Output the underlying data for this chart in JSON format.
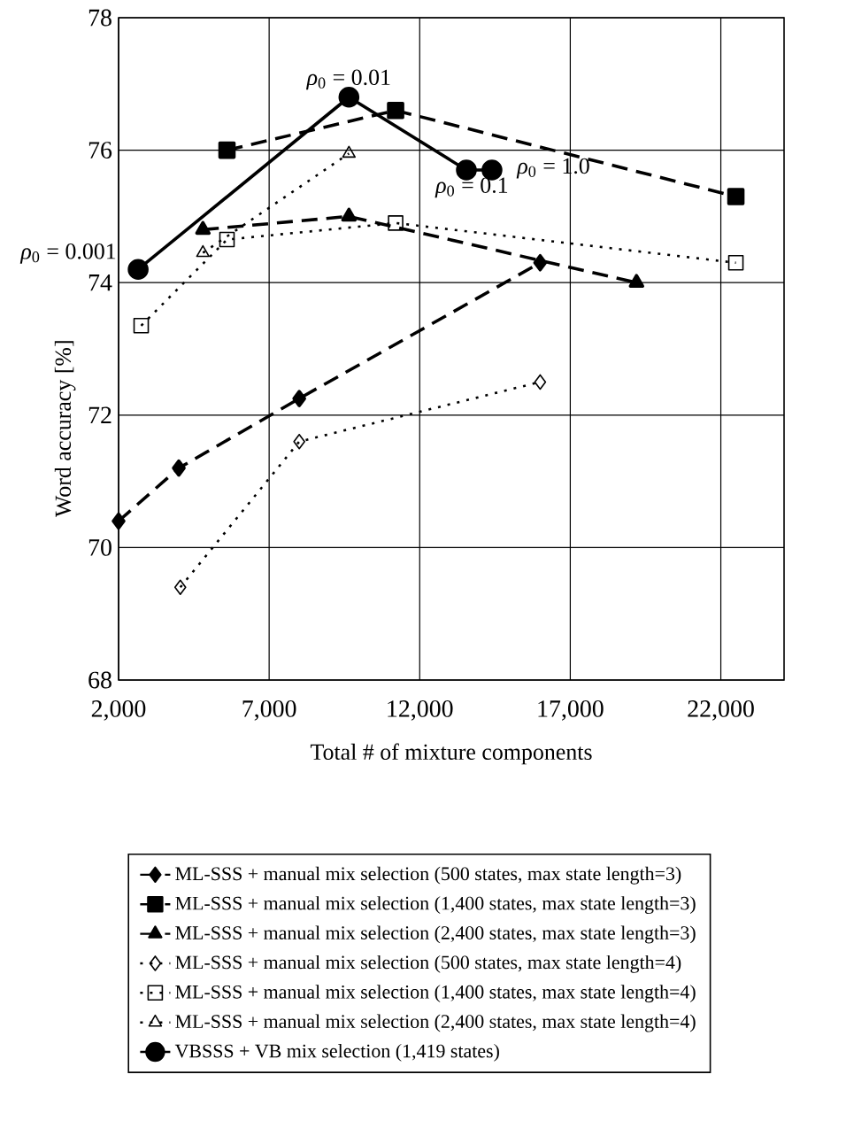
{
  "chart_data": {
    "type": "line",
    "xlabel": "Total # of mixture components",
    "ylabel": "Word accuracy [%]",
    "xlim": [
      2000,
      24100
    ],
    "ylim": [
      68,
      78
    ],
    "xticks": [
      {
        "value": 2000,
        "label": "2,000"
      },
      {
        "value": 7000,
        "label": "7,000"
      },
      {
        "value": 12000,
        "label": "12,000"
      },
      {
        "value": 17000,
        "label": "17,000"
      },
      {
        "value": 22000,
        "label": "22,000"
      }
    ],
    "yticks": [
      68,
      70,
      72,
      74,
      76,
      78
    ],
    "grid": true,
    "legend": "bottom",
    "series": [
      {
        "name": "ML-SSS + manual mix selection (500 states, max state length=3)",
        "color": "#000000",
        "marker": "diamond",
        "line_style": "dashed",
        "x": [
          2000,
          4000,
          8000,
          16000
        ],
        "values": [
          70.4,
          71.2,
          72.25,
          74.3
        ]
      },
      {
        "name": "ML-SSS + manual mix selection (1,400 states, max state length=3)",
        "color": "#000000",
        "marker": "square",
        "line_style": "dashed",
        "x": [
          5600,
          11200,
          22500
        ],
        "values": [
          76.0,
          76.6,
          75.3
        ]
      },
      {
        "name": "ML-SSS + manual mix selection (2,400 states, max state length=3)",
        "color": "#000000",
        "marker": "triangle",
        "line_style": "dashed",
        "x": [
          4800,
          9650,
          19200
        ],
        "values": [
          74.8,
          75.0,
          74.0
        ]
      },
      {
        "name": "ML-SSS + manual mix selection (500 states, max state length=4)",
        "color": "#000000",
        "marker": "diamond",
        "line_style": "dotted",
        "x": [
          4050,
          8000,
          16000
        ],
        "values": [
          69.4,
          71.6,
          72.5
        ]
      },
      {
        "name": "ML-SSS + manual mix selection (1,400 states, max state length=4)",
        "color": "#000000",
        "marker": "square",
        "line_style": "dotted",
        "x": [
          2750,
          5600,
          11200,
          22500
        ],
        "values": [
          73.35,
          74.65,
          74.9,
          74.3
        ]
      },
      {
        "name": "ML-SSS + manual mix selection (2,400 states, max state length=4)",
        "color": "#000000",
        "marker": "triangle",
        "line_style": "dotted",
        "x": [
          4800,
          9650
        ],
        "values": [
          74.45,
          75.95
        ]
      },
      {
        "name": "VBSSS + VB mix selection (1,419 states)",
        "color": "#000000",
        "marker": "circle",
        "line_style": "solid",
        "x": [
          2650,
          9650,
          13550,
          14400
        ],
        "values": [
          74.2,
          76.8,
          75.7,
          75.7
        ]
      }
    ],
    "annotations": [
      {
        "text": "*ρ*$_{0}$ = 0.001",
        "x": 2650,
        "y": 74.2
      },
      {
        "text": "*ρ*$_{0}$ = 0.01",
        "x": 9650,
        "y": 76.8
      },
      {
        "text": "*ρ*$_{0}$ = 0.1",
        "x": 13550,
        "y": 75.7
      },
      {
        "text": "*ρ*$_{0}$ = 1.0",
        "x": 14400,
        "y": 75.7
      }
    ]
  }
}
